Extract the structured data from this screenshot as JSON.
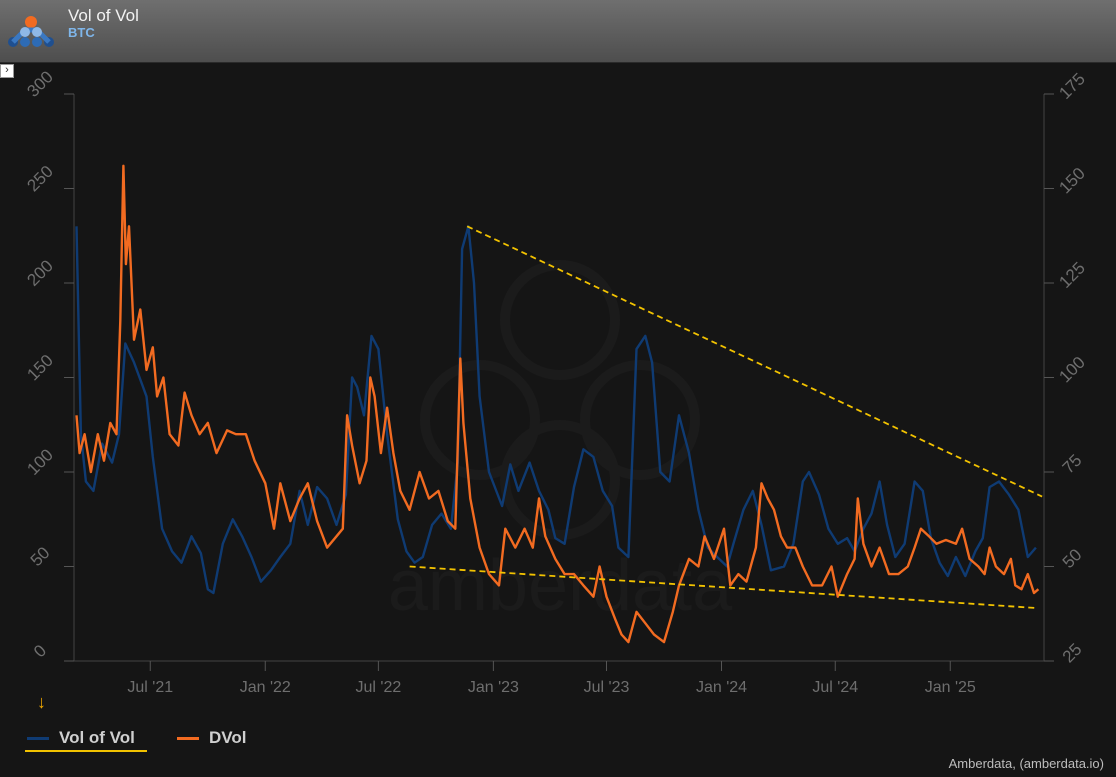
{
  "header": {
    "title": "Vol of Vol",
    "subtitle": "BTC"
  },
  "watermark": "amberdata",
  "credit": "Amberdata, (amberdata.io)",
  "colors": {
    "vol_of_vol": "#0f3b73",
    "dvol": "#f26b21",
    "trendline": "#f2c200",
    "axis_text": "#6e6e6e",
    "background": "#151515"
  },
  "legend": {
    "items": [
      {
        "label": "Vol of Vol",
        "color": "#0f3b73"
      },
      {
        "label": "DVol",
        "color": "#f26b21"
      }
    ]
  },
  "chart_data": {
    "type": "line",
    "x_axis": {
      "type": "date",
      "range": [
        "2021-03-01",
        "2025-05-31"
      ],
      "ticks": [
        {
          "date": "2021-07-01",
          "label": "Jul '21"
        },
        {
          "date": "2022-01-01",
          "label": "Jan '22"
        },
        {
          "date": "2022-07-01",
          "label": "Jul '22"
        },
        {
          "date": "2023-01-01",
          "label": "Jan '23"
        },
        {
          "date": "2023-07-01",
          "label": "Jul '23"
        },
        {
          "date": "2024-01-01",
          "label": "Jan '24"
        },
        {
          "date": "2024-07-01",
          "label": "Jul '24"
        },
        {
          "date": "2025-01-01",
          "label": "Jan '25"
        }
      ]
    },
    "y_left": {
      "range": [
        0,
        300
      ],
      "ticks": [
        0,
        50,
        100,
        150,
        200,
        250,
        300
      ],
      "series": "Vol of Vol"
    },
    "y_right": {
      "range": [
        25,
        175
      ],
      "ticks": [
        25,
        50,
        75,
        100,
        125,
        150,
        175
      ],
      "series": "DVol"
    },
    "grid": false,
    "legend_position": "bottom-left",
    "series": [
      {
        "name": "Vol of Vol",
        "axis": "left",
        "points": [
          [
            "2021-03-05",
            230
          ],
          [
            "2021-03-12",
            120
          ],
          [
            "2021-03-20",
            95
          ],
          [
            "2021-04-01",
            90
          ],
          [
            "2021-04-15",
            115
          ],
          [
            "2021-05-01",
            105
          ],
          [
            "2021-05-12",
            120
          ],
          [
            "2021-05-22",
            168
          ],
          [
            "2021-06-05",
            158
          ],
          [
            "2021-06-25",
            140
          ],
          [
            "2021-07-05",
            108
          ],
          [
            "2021-07-20",
            70
          ],
          [
            "2021-08-05",
            58
          ],
          [
            "2021-08-20",
            52
          ],
          [
            "2021-09-05",
            66
          ],
          [
            "2021-09-20",
            57
          ],
          [
            "2021-10-01",
            38
          ],
          [
            "2021-10-10",
            36
          ],
          [
            "2021-10-25",
            62
          ],
          [
            "2021-11-10",
            75
          ],
          [
            "2021-11-25",
            66
          ],
          [
            "2021-12-10",
            55
          ],
          [
            "2021-12-25",
            42
          ],
          [
            "2022-01-10",
            48
          ],
          [
            "2022-01-25",
            55
          ],
          [
            "2022-02-10",
            62
          ],
          [
            "2022-02-25",
            90
          ],
          [
            "2022-03-10",
            72
          ],
          [
            "2022-03-25",
            92
          ],
          [
            "2022-04-10",
            86
          ],
          [
            "2022-04-25",
            72
          ],
          [
            "2022-05-10",
            88
          ],
          [
            "2022-05-20",
            150
          ],
          [
            "2022-05-28",
            145
          ],
          [
            "2022-06-08",
            130
          ],
          [
            "2022-06-20",
            172
          ],
          [
            "2022-07-01",
            165
          ],
          [
            "2022-07-15",
            120
          ],
          [
            "2022-08-01",
            75
          ],
          [
            "2022-08-15",
            58
          ],
          [
            "2022-08-28",
            52
          ],
          [
            "2022-09-10",
            55
          ],
          [
            "2022-09-25",
            72
          ],
          [
            "2022-10-10",
            78
          ],
          [
            "2022-10-25",
            70
          ],
          [
            "2022-11-05",
            105
          ],
          [
            "2022-11-12",
            218
          ],
          [
            "2022-11-22",
            230
          ],
          [
            "2022-12-01",
            200
          ],
          [
            "2022-12-10",
            140
          ],
          [
            "2022-12-25",
            100
          ],
          [
            "2023-01-15",
            82
          ],
          [
            "2023-01-28",
            104
          ],
          [
            "2023-02-10",
            90
          ],
          [
            "2023-02-28",
            105
          ],
          [
            "2023-03-15",
            90
          ],
          [
            "2023-03-30",
            80
          ],
          [
            "2023-04-10",
            65
          ],
          [
            "2023-04-25",
            62
          ],
          [
            "2023-05-10",
            92
          ],
          [
            "2023-05-25",
            112
          ],
          [
            "2023-06-10",
            108
          ],
          [
            "2023-06-25",
            90
          ],
          [
            "2023-07-10",
            82
          ],
          [
            "2023-07-20",
            60
          ],
          [
            "2023-08-05",
            55
          ],
          [
            "2023-08-18",
            165
          ],
          [
            "2023-09-01",
            172
          ],
          [
            "2023-09-12",
            158
          ],
          [
            "2023-09-25",
            100
          ],
          [
            "2023-10-10",
            95
          ],
          [
            "2023-10-25",
            130
          ],
          [
            "2023-11-10",
            110
          ],
          [
            "2023-11-25",
            80
          ],
          [
            "2023-12-10",
            60
          ],
          [
            "2023-12-25",
            55
          ],
          [
            "2024-01-10",
            50
          ],
          [
            "2024-01-20",
            62
          ],
          [
            "2024-02-05",
            80
          ],
          [
            "2024-02-20",
            90
          ],
          [
            "2024-03-05",
            72
          ],
          [
            "2024-03-20",
            48
          ],
          [
            "2024-04-10",
            50
          ],
          [
            "2024-04-25",
            62
          ],
          [
            "2024-05-10",
            95
          ],
          [
            "2024-05-20",
            100
          ],
          [
            "2024-06-05",
            88
          ],
          [
            "2024-06-20",
            70
          ],
          [
            "2024-07-05",
            62
          ],
          [
            "2024-07-20",
            65
          ],
          [
            "2024-08-01",
            58
          ],
          [
            "2024-08-15",
            70
          ],
          [
            "2024-08-28",
            78
          ],
          [
            "2024-09-10",
            95
          ],
          [
            "2024-09-22",
            72
          ],
          [
            "2024-10-05",
            55
          ],
          [
            "2024-10-20",
            62
          ],
          [
            "2024-11-05",
            95
          ],
          [
            "2024-11-18",
            90
          ],
          [
            "2024-12-01",
            65
          ],
          [
            "2024-12-15",
            52
          ],
          [
            "2024-12-28",
            45
          ],
          [
            "2025-01-10",
            55
          ],
          [
            "2025-01-25",
            45
          ],
          [
            "2025-02-10",
            58
          ],
          [
            "2025-02-22",
            65
          ],
          [
            "2025-03-05",
            92
          ],
          [
            "2025-03-20",
            95
          ],
          [
            "2025-04-05",
            88
          ],
          [
            "2025-04-20",
            80
          ],
          [
            "2025-05-05",
            55
          ],
          [
            "2025-05-18",
            60
          ]
        ]
      },
      {
        "name": "DVol",
        "axis": "right",
        "points": [
          [
            "2021-03-05",
            90
          ],
          [
            "2021-03-10",
            80
          ],
          [
            "2021-03-18",
            85
          ],
          [
            "2021-03-28",
            75
          ],
          [
            "2021-04-08",
            85
          ],
          [
            "2021-04-18",
            78
          ],
          [
            "2021-04-28",
            88
          ],
          [
            "2021-05-08",
            85
          ],
          [
            "2021-05-14",
            115
          ],
          [
            "2021-05-19",
            156
          ],
          [
            "2021-05-23",
            130
          ],
          [
            "2021-05-28",
            140
          ],
          [
            "2021-06-05",
            110
          ],
          [
            "2021-06-15",
            118
          ],
          [
            "2021-06-25",
            102
          ],
          [
            "2021-07-05",
            108
          ],
          [
            "2021-07-12",
            95
          ],
          [
            "2021-07-22",
            100
          ],
          [
            "2021-08-01",
            85
          ],
          [
            "2021-08-15",
            82
          ],
          [
            "2021-08-25",
            96
          ],
          [
            "2021-09-05",
            90
          ],
          [
            "2021-09-18",
            85
          ],
          [
            "2021-10-01",
            88
          ],
          [
            "2021-10-15",
            80
          ],
          [
            "2021-11-01",
            86
          ],
          [
            "2021-11-15",
            85
          ],
          [
            "2021-12-01",
            85
          ],
          [
            "2021-12-15",
            78
          ],
          [
            "2022-01-01",
            72
          ],
          [
            "2022-01-15",
            60
          ],
          [
            "2022-01-25",
            72
          ],
          [
            "2022-02-10",
            62
          ],
          [
            "2022-02-25",
            68
          ],
          [
            "2022-03-10",
            72
          ],
          [
            "2022-03-25",
            62
          ],
          [
            "2022-04-10",
            55
          ],
          [
            "2022-04-25",
            58
          ],
          [
            "2022-05-05",
            60
          ],
          [
            "2022-05-12",
            90
          ],
          [
            "2022-05-20",
            82
          ],
          [
            "2022-06-01",
            72
          ],
          [
            "2022-06-12",
            78
          ],
          [
            "2022-06-18",
            100
          ],
          [
            "2022-06-25",
            95
          ],
          [
            "2022-07-05",
            80
          ],
          [
            "2022-07-15",
            92
          ],
          [
            "2022-07-25",
            80
          ],
          [
            "2022-08-05",
            70
          ],
          [
            "2022-08-20",
            65
          ],
          [
            "2022-09-05",
            75
          ],
          [
            "2022-09-20",
            68
          ],
          [
            "2022-10-05",
            70
          ],
          [
            "2022-10-20",
            62
          ],
          [
            "2022-11-01",
            60
          ],
          [
            "2022-11-09",
            105
          ],
          [
            "2022-11-14",
            88
          ],
          [
            "2022-11-25",
            68
          ],
          [
            "2022-12-10",
            55
          ],
          [
            "2022-12-25",
            48
          ],
          [
            "2023-01-10",
            45
          ],
          [
            "2023-01-20",
            60
          ],
          [
            "2023-02-05",
            55
          ],
          [
            "2023-02-20",
            60
          ],
          [
            "2023-03-05",
            55
          ],
          [
            "2023-03-15",
            68
          ],
          [
            "2023-03-25",
            58
          ],
          [
            "2023-04-10",
            52
          ],
          [
            "2023-04-25",
            48
          ],
          [
            "2023-05-10",
            48
          ],
          [
            "2023-05-25",
            45
          ],
          [
            "2023-06-10",
            42
          ],
          [
            "2023-06-20",
            50
          ],
          [
            "2023-07-01",
            42
          ],
          [
            "2023-07-15",
            36
          ],
          [
            "2023-07-25",
            32
          ],
          [
            "2023-08-05",
            30
          ],
          [
            "2023-08-18",
            38
          ],
          [
            "2023-09-01",
            35
          ],
          [
            "2023-09-15",
            32
          ],
          [
            "2023-10-01",
            30
          ],
          [
            "2023-10-15",
            38
          ],
          [
            "2023-10-25",
            45
          ],
          [
            "2023-11-10",
            52
          ],
          [
            "2023-11-25",
            50
          ],
          [
            "2023-12-05",
            58
          ],
          [
            "2023-12-20",
            52
          ],
          [
            "2024-01-05",
            60
          ],
          [
            "2024-01-15",
            45
          ],
          [
            "2024-01-28",
            48
          ],
          [
            "2024-02-10",
            46
          ],
          [
            "2024-02-25",
            55
          ],
          [
            "2024-03-05",
            72
          ],
          [
            "2024-03-15",
            68
          ],
          [
            "2024-03-25",
            65
          ],
          [
            "2024-04-05",
            58
          ],
          [
            "2024-04-15",
            55
          ],
          [
            "2024-04-28",
            55
          ],
          [
            "2024-05-10",
            50
          ],
          [
            "2024-05-25",
            45
          ],
          [
            "2024-06-10",
            45
          ],
          [
            "2024-06-25",
            50
          ],
          [
            "2024-07-05",
            42
          ],
          [
            "2024-07-20",
            48
          ],
          [
            "2024-08-01",
            52
          ],
          [
            "2024-08-06",
            68
          ],
          [
            "2024-08-15",
            56
          ],
          [
            "2024-08-28",
            50
          ],
          [
            "2024-09-10",
            55
          ],
          [
            "2024-09-25",
            48
          ],
          [
            "2024-10-10",
            48
          ],
          [
            "2024-10-25",
            50
          ],
          [
            "2024-11-05",
            55
          ],
          [
            "2024-11-15",
            60
          ],
          [
            "2024-11-28",
            58
          ],
          [
            "2024-12-10",
            56
          ],
          [
            "2024-12-25",
            57
          ],
          [
            "2025-01-10",
            56
          ],
          [
            "2025-01-20",
            60
          ],
          [
            "2025-02-01",
            52
          ],
          [
            "2025-02-15",
            50
          ],
          [
            "2025-02-25",
            48
          ],
          [
            "2025-03-05",
            55
          ],
          [
            "2025-03-15",
            50
          ],
          [
            "2025-03-28",
            48
          ],
          [
            "2025-04-08",
            52
          ],
          [
            "2025-04-15",
            45
          ],
          [
            "2025-04-25",
            44
          ],
          [
            "2025-05-05",
            48
          ],
          [
            "2025-05-15",
            43
          ],
          [
            "2025-05-22",
            44
          ]
        ]
      }
    ],
    "annotations": [
      {
        "type": "trendline",
        "style": "dashed",
        "axis": "left",
        "from": [
          "2022-11-20",
          230
        ],
        "to": [
          "2025-05-28",
          87
        ]
      },
      {
        "type": "trendline",
        "style": "dashed",
        "axis": "right",
        "from": [
          "2022-08-20",
          50
        ],
        "to": [
          "2025-05-20",
          39
        ]
      }
    ]
  }
}
